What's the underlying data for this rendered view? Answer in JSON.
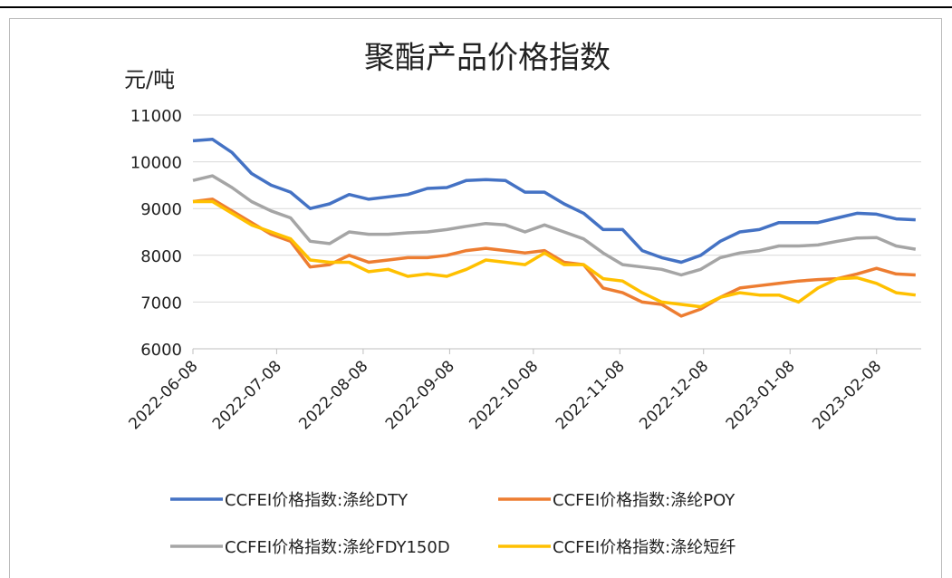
{
  "chart_data": {
    "type": "line",
    "title": "聚酯产品价格指数",
    "y_label": "元/吨",
    "x": [
      "2022-06-08",
      "2022-06-15",
      "2022-06-22",
      "2022-06-29",
      "2022-07-06",
      "2022-07-13",
      "2022-07-20",
      "2022-07-27",
      "2022-08-03",
      "2022-08-10",
      "2022-08-17",
      "2022-08-24",
      "2022-08-31",
      "2022-09-07",
      "2022-09-14",
      "2022-09-21",
      "2022-09-28",
      "2022-10-05",
      "2022-10-12",
      "2022-10-19",
      "2022-10-26",
      "2022-11-02",
      "2022-11-09",
      "2022-11-16",
      "2022-11-23",
      "2022-11-30",
      "2022-12-07",
      "2022-12-14",
      "2022-12-21",
      "2022-12-28",
      "2023-01-04",
      "2023-01-11",
      "2023-01-18",
      "2023-01-25",
      "2023-02-01",
      "2023-02-08",
      "2023-02-15",
      "2023-02-22"
    ],
    "series": [
      {
        "name": "CCFEI价格指数:涤纶DTY",
        "color": "#4472c4",
        "values": [
          10450,
          10480,
          10200,
          9750,
          9500,
          9350,
          9000,
          9100,
          9300,
          9200,
          9250,
          9300,
          9430,
          9450,
          9600,
          9620,
          9600,
          9350,
          9350,
          9100,
          8900,
          8550,
          8550,
          8100,
          7950,
          7850,
          8000,
          8300,
          8500,
          8550,
          8700,
          8700,
          8700,
          8800,
          8900,
          8880,
          8780,
          8760
        ]
      },
      {
        "name": "CCFEI价格指数:涤纶POY",
        "color": "#ed7d31",
        "values": [
          9150,
          9200,
          8950,
          8700,
          8450,
          8300,
          7750,
          7800,
          8000,
          7850,
          7900,
          7950,
          7950,
          8000,
          8100,
          8150,
          8100,
          8050,
          8100,
          7850,
          7800,
          7300,
          7200,
          7000,
          6950,
          6700,
          6850,
          7100,
          7300,
          7350,
          7400,
          7450,
          7480,
          7500,
          7600,
          7720,
          7600,
          7580
        ]
      },
      {
        "name": "CCFEI价格指数:涤纶FDY150D",
        "color": "#a5a5a5",
        "values": [
          9600,
          9700,
          9450,
          9150,
          8950,
          8800,
          8300,
          8250,
          8500,
          8450,
          8450,
          8480,
          8500,
          8550,
          8620,
          8680,
          8650,
          8500,
          8650,
          8500,
          8350,
          8050,
          7800,
          7750,
          7700,
          7580,
          7700,
          7950,
          8050,
          8100,
          8200,
          8200,
          8220,
          8300,
          8370,
          8380,
          8200,
          8130
        ]
      },
      {
        "name": "CCFEI价格指数:涤纶短纤",
        "color": "#ffc000",
        "values": [
          9150,
          9150,
          8900,
          8650,
          8500,
          8350,
          7900,
          7850,
          7850,
          7650,
          7700,
          7550,
          7600,
          7550,
          7700,
          7900,
          7850,
          7800,
          8050,
          7800,
          7800,
          7500,
          7450,
          7200,
          7000,
          6950,
          6900,
          7100,
          7200,
          7150,
          7150,
          7000,
          7300,
          7500,
          7520,
          7400,
          7200,
          7150
        ]
      }
    ],
    "xlim": [
      "2022-06-08",
      "2023-02-24"
    ],
    "xticks": [
      "2022-06-08",
      "2022-07-08",
      "2022-08-08",
      "2022-09-08",
      "2022-10-08",
      "2022-11-08",
      "2022-12-08",
      "2023-01-08",
      "2023-02-08"
    ],
    "ylim": [
      6000,
      11000
    ],
    "yticks": [
      6000,
      7000,
      8000,
      9000,
      10000,
      11000
    ],
    "grid": true,
    "legend": "bottom"
  }
}
